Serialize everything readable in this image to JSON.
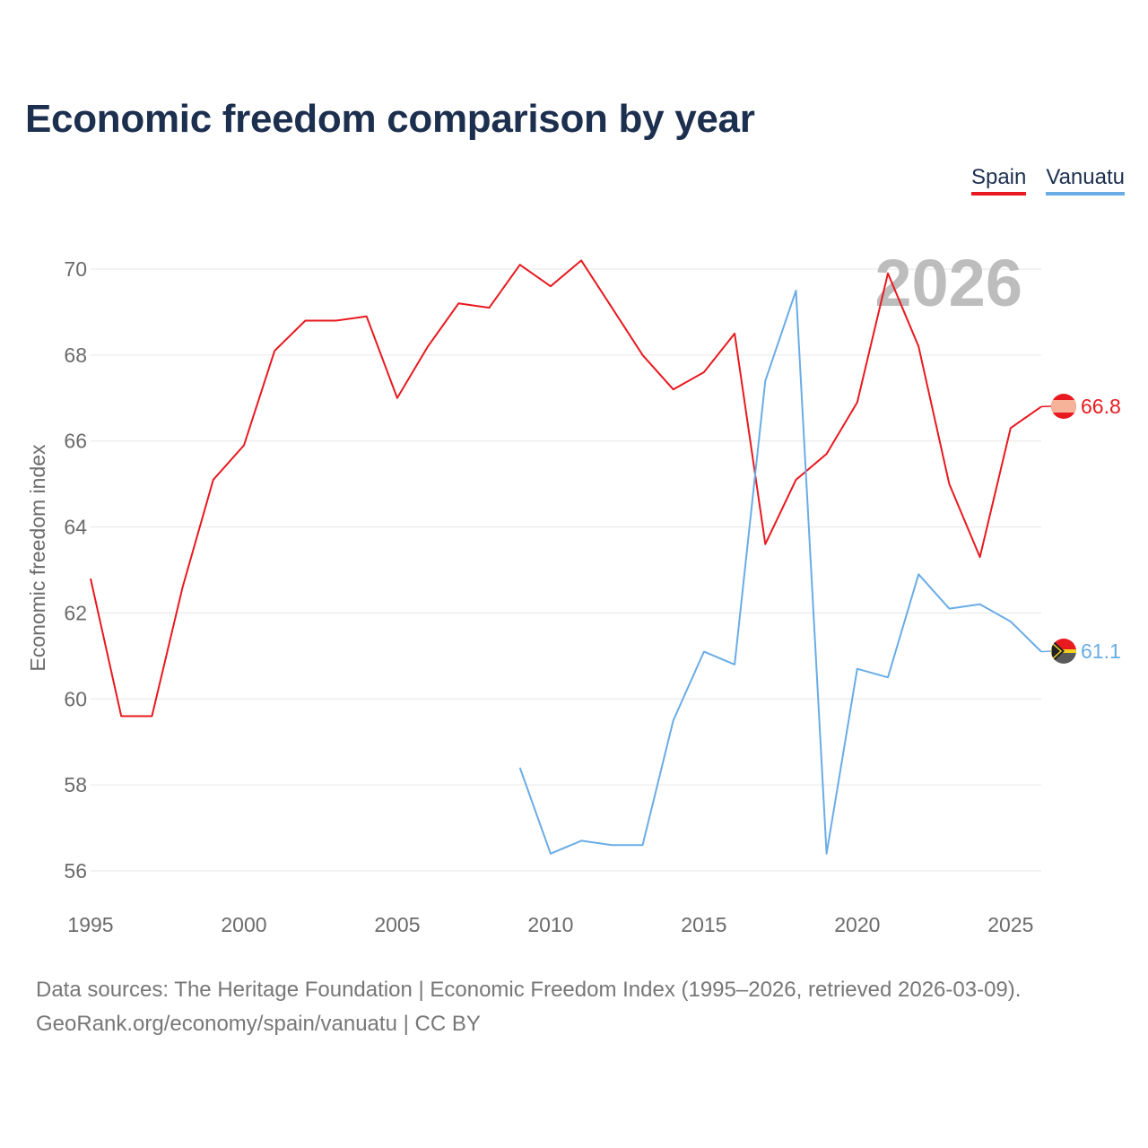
{
  "title": "Economic freedom comparison by year",
  "legend": [
    {
      "name": "Spain",
      "color": "#e8191f"
    },
    {
      "name": "Vanuatu",
      "color": "#6aace6"
    }
  ],
  "footer": {
    "line1": "Data sources: The Heritage Foundation | Economic Freedom Index (1995–2026, retrieved 2026-03-09).",
    "line2": "GeoRank.org/economy/spain/vanuatu | CC BY"
  },
  "chart_data": {
    "type": "line",
    "title": "Economic freedom comparison by year",
    "xlabel": "",
    "ylabel": "Economic freedom index",
    "year_label": "2026",
    "xlim": [
      1995,
      2026
    ],
    "ylim": [
      56,
      70
    ],
    "x_ticks": [
      1995,
      2000,
      2005,
      2010,
      2015,
      2020,
      2025
    ],
    "y_ticks": [
      56,
      58,
      60,
      62,
      64,
      66,
      68,
      70
    ],
    "grid": true,
    "legend_position": "top-right",
    "series": [
      {
        "name": "Spain",
        "color": "#e8191f",
        "end_label": "66.8",
        "x": [
          1995,
          1996,
          1997,
          1998,
          1999,
          2000,
          2001,
          2002,
          2003,
          2004,
          2005,
          2006,
          2007,
          2008,
          2009,
          2010,
          2011,
          2012,
          2013,
          2014,
          2015,
          2016,
          2017,
          2018,
          2019,
          2020,
          2021,
          2022,
          2023,
          2024,
          2025,
          2026
        ],
        "values": [
          62.8,
          59.6,
          59.6,
          62.6,
          65.1,
          65.9,
          68.1,
          68.8,
          68.8,
          68.9,
          67.0,
          68.2,
          69.2,
          69.1,
          70.1,
          69.6,
          70.2,
          69.1,
          68.0,
          67.2,
          67.6,
          68.5,
          63.6,
          65.1,
          65.7,
          66.9,
          69.9,
          68.2,
          65.0,
          63.3,
          66.3,
          66.8
        ]
      },
      {
        "name": "Vanuatu",
        "color": "#6aace6",
        "end_label": "61.1",
        "x": [
          2009,
          2010,
          2011,
          2012,
          2013,
          2014,
          2015,
          2016,
          2017,
          2018,
          2019,
          2020,
          2021,
          2022,
          2023,
          2024,
          2025,
          2026
        ],
        "values": [
          58.4,
          56.4,
          56.7,
          56.6,
          56.6,
          59.5,
          61.1,
          60.8,
          67.4,
          69.5,
          56.4,
          60.7,
          60.5,
          62.9,
          62.1,
          62.2,
          61.8,
          61.1
        ]
      }
    ]
  }
}
